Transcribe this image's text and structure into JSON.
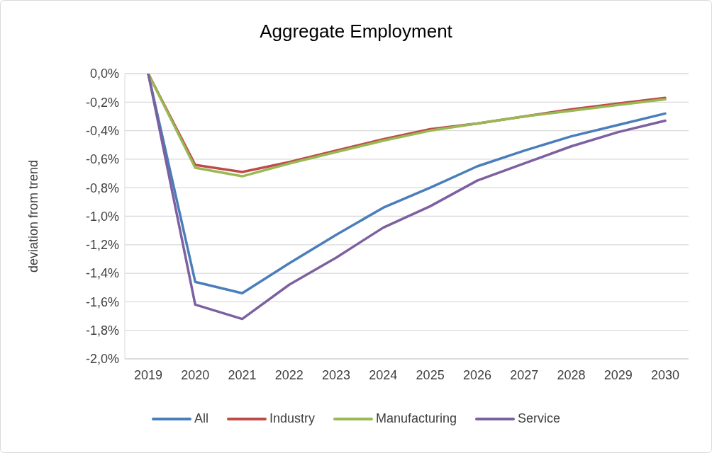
{
  "chart_data": {
    "type": "line",
    "title": "Aggregate Employment",
    "ylabel": "deviation from trend",
    "categories": [
      "2019",
      "2020",
      "2021",
      "2022",
      "2023",
      "2024",
      "2025",
      "2026",
      "2027",
      "2028",
      "2029",
      "2030"
    ],
    "series": [
      {
        "name": "All",
        "color": "#4a7ebb",
        "values": [
          0,
          -1.46,
          -1.54,
          -1.33,
          -1.13,
          -0.94,
          -0.8,
          -0.65,
          -0.54,
          -0.44,
          -0.36,
          -0.28
        ]
      },
      {
        "name": "Industry",
        "color": "#be4b48",
        "values": [
          0,
          -0.64,
          -0.69,
          -0.62,
          -0.54,
          -0.46,
          -0.39,
          -0.35,
          -0.3,
          -0.25,
          -0.21,
          -0.17
        ]
      },
      {
        "name": "Manufacturing",
        "color": "#98b954",
        "values": [
          0,
          -0.66,
          -0.72,
          -0.63,
          -0.55,
          -0.47,
          -0.4,
          -0.35,
          -0.3,
          -0.26,
          -0.22,
          -0.18
        ]
      },
      {
        "name": "Service",
        "color": "#7d60a0",
        "values": [
          0,
          -1.62,
          -1.72,
          -1.48,
          -1.29,
          -1.08,
          -0.93,
          -0.75,
          -0.63,
          -0.51,
          -0.41,
          -0.33
        ]
      }
    ],
    "ylim": [
      -2,
      0
    ],
    "yticks": [
      {
        "value": 0,
        "label": "0,0%"
      },
      {
        "value": -0.2,
        "label": "-0,2%"
      },
      {
        "value": -0.4,
        "label": "-0,4%"
      },
      {
        "value": -0.6,
        "label": "-0,6%"
      },
      {
        "value": -0.8,
        "label": "-0,8%"
      },
      {
        "value": -1,
        "label": "-1,0%"
      },
      {
        "value": -1.2,
        "label": "-1,2%"
      },
      {
        "value": -1.4,
        "label": "-1,4%"
      },
      {
        "value": -1.6,
        "label": "-1,6%"
      },
      {
        "value": -1.8,
        "label": "-1,8%"
      },
      {
        "value": -2,
        "label": "-2,0%"
      }
    ],
    "grid": "y",
    "legend": "bottom",
    "marker": "none",
    "line_style": "solid"
  }
}
